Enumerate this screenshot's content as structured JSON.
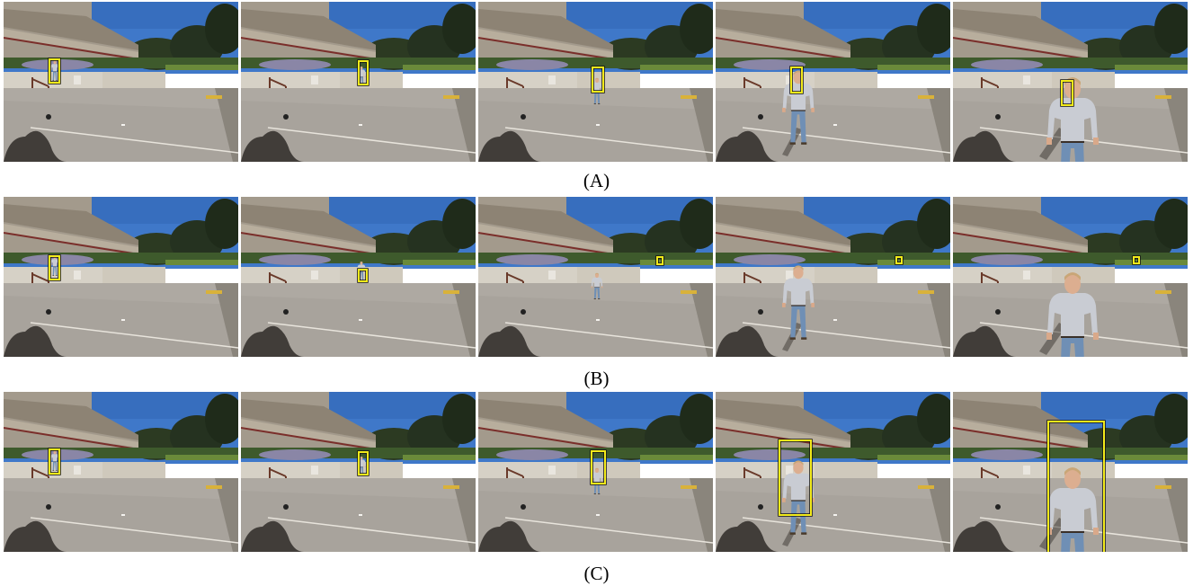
{
  "rows": [
    {
      "caption": "(A)",
      "frames": [
        {
          "person": 0,
          "box": 1
        },
        {
          "person": 1,
          "box": 1
        },
        {
          "person": 2,
          "box": 1
        },
        {
          "person": 3,
          "box": 1
        },
        {
          "person": 4,
          "box": 1
        }
      ]
    },
    {
      "caption": "(B)",
      "frames": [
        {
          "person": 0,
          "box": 1
        },
        {
          "person": 1,
          "box": 1
        },
        {
          "person": 2,
          "box": 1
        },
        {
          "person": 3,
          "box": 1
        },
        {
          "person": 4,
          "box": 1
        }
      ]
    },
    {
      "caption": "(C)",
      "frames": [
        {
          "person": 0,
          "box": 1
        },
        {
          "person": 1,
          "box": 1
        },
        {
          "person": 2,
          "box": 1
        },
        {
          "person": 3,
          "box": 1
        },
        {
          "person": 4,
          "box": 1
        }
      ]
    }
  ],
  "colors": {
    "sky": "#3f78c9",
    "tracker_box": "#f2ea1a",
    "pavement": "#a8a39c",
    "building": "#a39a8c"
  }
}
